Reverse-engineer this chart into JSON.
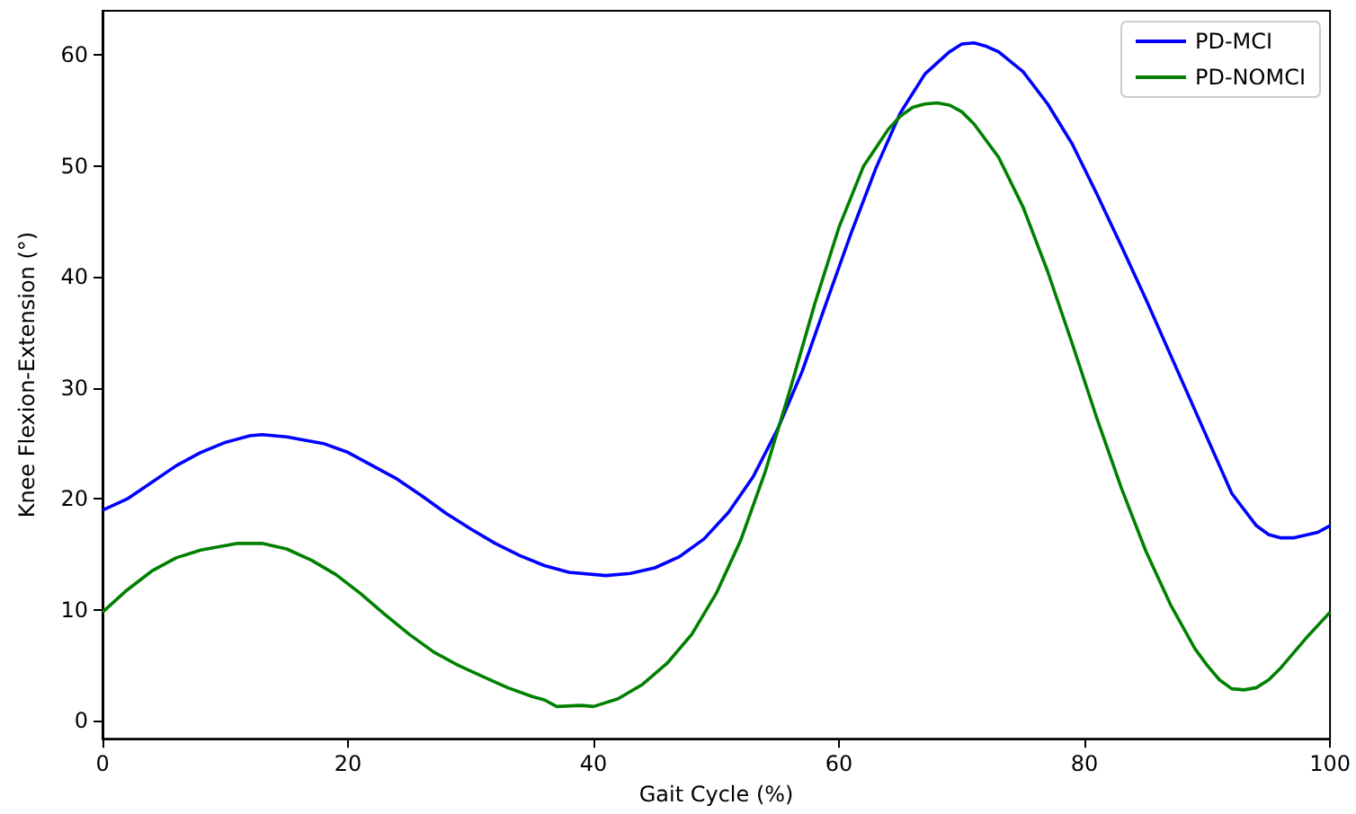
{
  "chart_data": {
    "type": "line",
    "xlabel": "Gait Cycle (%)",
    "ylabel": "Knee Flexion-Extension (°)",
    "xlim": [
      0,
      100
    ],
    "xticks": [
      0,
      20,
      40,
      60,
      80,
      100
    ],
    "ylim": [
      -1.6,
      64
    ],
    "yticks": [
      0,
      10,
      20,
      30,
      40,
      50,
      60
    ],
    "grid": false,
    "legend": "top right",
    "marker": "none",
    "line_style": "solid",
    "series": [
      {
        "name": "PD-MCI",
        "color": "#0000ff",
        "x": [
          0,
          2,
          4,
          6,
          8,
          10,
          12,
          13,
          15,
          18,
          20,
          22,
          24,
          26,
          28,
          30,
          32,
          34,
          36,
          38,
          41,
          43,
          45,
          47,
          49,
          51,
          53,
          55,
          57,
          59,
          61,
          63,
          65,
          67,
          69,
          70,
          71,
          72,
          73,
          75,
          77,
          79,
          81,
          83,
          85,
          87,
          89,
          91,
          92,
          94,
          95,
          96,
          97,
          99,
          100
        ],
        "values": [
          19,
          20,
          21.5,
          23,
          24.2,
          25.1,
          25.7,
          25.8,
          25.6,
          25,
          24.2,
          23,
          21.8,
          20.3,
          18.7,
          17.3,
          16,
          14.9,
          14,
          13.4,
          13.1,
          13.3,
          13.8,
          14.8,
          16.4,
          18.8,
          22,
          26.3,
          31.5,
          37.8,
          44,
          49.8,
          54.8,
          58.3,
          60.3,
          61,
          61.1,
          60.8,
          60.3,
          58.5,
          55.6,
          52,
          47.5,
          42.8,
          38,
          33,
          28,
          23,
          20.5,
          17.6,
          16.8,
          16.5,
          16.5,
          17,
          17.6
        ]
      },
      {
        "name": "PD-NOMCI",
        "color": "#008000",
        "x": [
          0,
          2,
          4,
          6,
          8,
          10,
          11,
          13,
          15,
          17,
          19,
          21,
          23,
          25,
          27,
          29,
          31,
          33,
          35,
          36,
          37,
          39,
          40,
          42,
          44,
          46,
          48,
          50,
          52,
          54,
          56,
          58,
          60,
          62,
          64,
          65,
          66,
          67,
          68,
          69,
          70,
          71,
          73,
          75,
          77,
          79,
          81,
          83,
          85,
          87,
          89,
          90,
          91,
          92,
          93,
          94,
          95,
          96,
          98,
          100
        ],
        "values": [
          9.8,
          11.8,
          13.5,
          14.7,
          15.4,
          15.8,
          16,
          16,
          15.5,
          14.5,
          13.2,
          11.5,
          9.6,
          7.8,
          6.2,
          5,
          4,
          3,
          2.2,
          1.9,
          1.3,
          1.4,
          1.3,
          2,
          3.3,
          5.2,
          7.8,
          11.5,
          16.3,
          22.5,
          29.8,
          37.5,
          44.5,
          50,
          53.3,
          54.5,
          55.3,
          55.6,
          55.7,
          55.5,
          54.9,
          53.8,
          50.8,
          46.3,
          40.5,
          34,
          27.3,
          21,
          15.3,
          10.5,
          6.5,
          5,
          3.7,
          2.9,
          2.8,
          3,
          3.7,
          4.8,
          7.4,
          9.8
        ]
      }
    ]
  }
}
